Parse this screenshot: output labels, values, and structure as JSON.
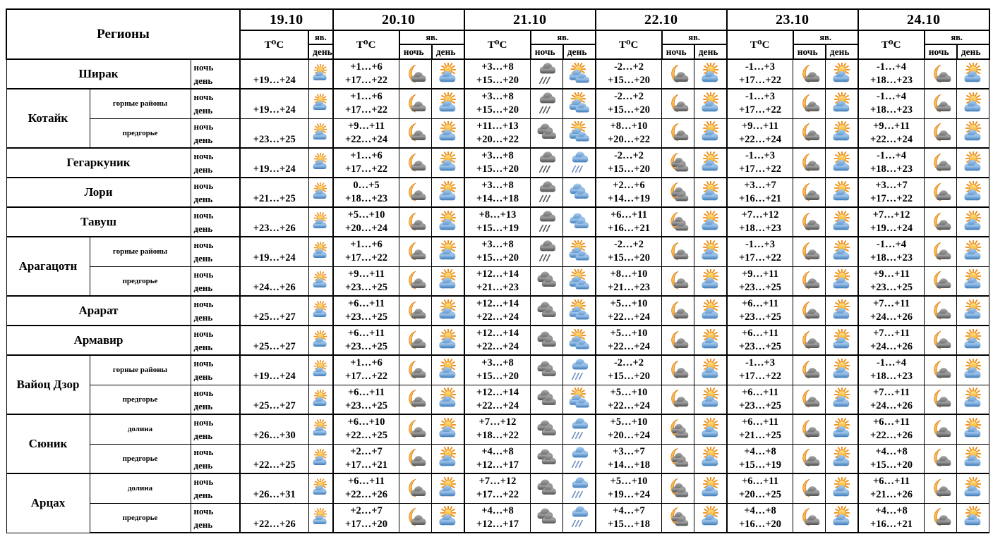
{
  "labels": {
    "regions": "Регионы",
    "temperature": "T⁰C",
    "phenomena": "яв.",
    "night": "ночь",
    "day": "день"
  },
  "dates": [
    "19.10",
    "20.10",
    "21.10",
    "22.10",
    "23.10",
    "24.10"
  ],
  "icons": {
    "sun-cloud": "sun above blue cloud (partly sunny)",
    "sun-clouds": "sun behind two blue clouds",
    "moon-cloud": "crescent moon with dark cloud",
    "moon-clouds": "crescent moon with two dark clouds",
    "cloud-rain-night": "dark cloud with rain",
    "cloud-rain-day": "blue cloud with rain",
    "clouds-dark": "two dark clouds",
    "clouds-blue": "two blue clouds"
  },
  "colors": {
    "sun": "#f5a623",
    "moon": "#ef8f1c",
    "cloud_day": "#3d7ab8",
    "cloud_night": "#5a5a5a",
    "border": "#000000"
  },
  "rows": [
    {
      "region": "Ширак",
      "subregion": null,
      "new_region": true,
      "cells": [
        {
          "day_t": "+19…+24",
          "day_icon": "sun-cloud"
        },
        {
          "night_t": "+1…+6",
          "day_t": "+17…+22",
          "night_icon": "moon-cloud",
          "day_icon": "sun-cloud"
        },
        {
          "night_t": "+3…+8",
          "day_t": "+15…+20",
          "night_icon": "cloud-rain-night",
          "day_icon": "sun-clouds"
        },
        {
          "night_t": "-2…+2",
          "day_t": "+15…+20",
          "night_icon": "moon-cloud",
          "day_icon": "sun-cloud"
        },
        {
          "night_t": "-1…+3",
          "day_t": "+17…+22",
          "night_icon": "moon-cloud",
          "day_icon": "sun-cloud"
        },
        {
          "night_t": "-1…+4",
          "day_t": "+18…+23",
          "night_icon": "moon-cloud",
          "day_icon": "sun-cloud"
        }
      ]
    },
    {
      "region": "Котайк",
      "rowspan": 2,
      "subregion": "горные районы",
      "new_region": true,
      "cells": [
        {
          "day_t": "+19…+24",
          "day_icon": "sun-cloud"
        },
        {
          "night_t": "+1…+6",
          "day_t": "+17…+22",
          "night_icon": "moon-cloud",
          "day_icon": "sun-cloud"
        },
        {
          "night_t": "+3…+8",
          "day_t": "+15…+20",
          "night_icon": "cloud-rain-night",
          "day_icon": "sun-clouds"
        },
        {
          "night_t": "-2…+2",
          "day_t": "+15…+20",
          "night_icon": "moon-cloud",
          "day_icon": "sun-cloud"
        },
        {
          "night_t": "-1…+3",
          "day_t": "+17…+22",
          "night_icon": "moon-cloud",
          "day_icon": "sun-cloud"
        },
        {
          "night_t": "-1…+4",
          "day_t": "+18…+23",
          "night_icon": "moon-cloud",
          "day_icon": "sun-cloud"
        }
      ]
    },
    {
      "region": null,
      "subregion": "предгорье",
      "cells": [
        {
          "day_t": "+23…+25",
          "day_icon": "sun-cloud"
        },
        {
          "night_t": "+9…+11",
          "day_t": "+22…+24",
          "night_icon": "moon-cloud",
          "day_icon": "sun-cloud"
        },
        {
          "night_t": "+11…+13",
          "day_t": "+20…+22",
          "night_icon": "clouds-dark",
          "day_icon": "sun-clouds"
        },
        {
          "night_t": "+8…+10",
          "day_t": "+20…+22",
          "night_icon": "moon-cloud",
          "day_icon": "sun-cloud"
        },
        {
          "night_t": "+9…+11",
          "day_t": "+22…+24",
          "night_icon": "moon-cloud",
          "day_icon": "sun-cloud"
        },
        {
          "night_t": "+9…+11",
          "day_t": "+22…+24",
          "night_icon": "moon-cloud",
          "day_icon": "sun-cloud"
        }
      ]
    },
    {
      "region": "Гегаркуник",
      "subregion": null,
      "new_region": true,
      "cells": [
        {
          "day_t": "+19…+24",
          "day_icon": "sun-cloud"
        },
        {
          "night_t": "+1…+6",
          "day_t": "+17…+22",
          "night_icon": "moon-cloud",
          "day_icon": "sun-cloud"
        },
        {
          "night_t": "+3…+8",
          "day_t": "+15…+20",
          "night_icon": "cloud-rain-night",
          "day_icon": "cloud-rain-day"
        },
        {
          "night_t": "-2…+2",
          "day_t": "+15…+20",
          "night_icon": "moon-clouds",
          "day_icon": "sun-cloud"
        },
        {
          "night_t": "-1…+3",
          "day_t": "+17…+22",
          "night_icon": "moon-cloud",
          "day_icon": "sun-cloud"
        },
        {
          "night_t": "-1…+4",
          "day_t": "+18…+23",
          "night_icon": "moon-cloud",
          "day_icon": "sun-cloud"
        }
      ]
    },
    {
      "region": "Лори",
      "subregion": null,
      "new_region": true,
      "cells": [
        {
          "day_t": "+21…+25",
          "day_icon": "sun-cloud"
        },
        {
          "night_t": "0…+5",
          "day_t": "+18…+23",
          "night_icon": "moon-cloud",
          "day_icon": "sun-cloud"
        },
        {
          "night_t": "+3…+8",
          "day_t": "+14…+18",
          "night_icon": "cloud-rain-night",
          "day_icon": "clouds-blue"
        },
        {
          "night_t": "+2…+6",
          "day_t": "+14…+19",
          "night_icon": "moon-clouds",
          "day_icon": "sun-cloud"
        },
        {
          "night_t": "+3…+7",
          "day_t": "+16…+21",
          "night_icon": "moon-cloud",
          "day_icon": "sun-cloud"
        },
        {
          "night_t": "+3…+7",
          "day_t": "+17…+22",
          "night_icon": "moon-cloud",
          "day_icon": "sun-cloud"
        }
      ]
    },
    {
      "region": "Тавуш",
      "subregion": null,
      "new_region": true,
      "cells": [
        {
          "day_t": "+23…+26",
          "day_icon": "sun-cloud"
        },
        {
          "night_t": "+5…+10",
          "day_t": "+20…+24",
          "night_icon": "moon-cloud",
          "day_icon": "sun-cloud"
        },
        {
          "night_t": "+8…+13",
          "day_t": "+15…+19",
          "night_icon": "cloud-rain-night",
          "day_icon": "clouds-blue"
        },
        {
          "night_t": "+6…+11",
          "day_t": "+16…+21",
          "night_icon": "moon-clouds",
          "day_icon": "sun-cloud"
        },
        {
          "night_t": "+7…+12",
          "day_t": "+18…+23",
          "night_icon": "moon-cloud",
          "day_icon": "sun-cloud"
        },
        {
          "night_t": "+7…+12",
          "day_t": "+19…+24",
          "night_icon": "moon-cloud",
          "day_icon": "sun-cloud"
        }
      ]
    },
    {
      "region": "Арагацотн",
      "rowspan": 2,
      "subregion": "горные районы",
      "new_region": true,
      "cells": [
        {
          "day_t": "+19…+24",
          "day_icon": "sun-cloud"
        },
        {
          "night_t": "+1…+6",
          "day_t": "+17…+22",
          "night_icon": "moon-cloud",
          "day_icon": "sun-cloud"
        },
        {
          "night_t": "+3…+8",
          "day_t": "+15…+20",
          "night_icon": "cloud-rain-night",
          "day_icon": "sun-clouds"
        },
        {
          "night_t": "-2…+2",
          "day_t": "+15…+20",
          "night_icon": "moon-cloud",
          "day_icon": "sun-cloud"
        },
        {
          "night_t": "-1…+3",
          "day_t": "+17…+22",
          "night_icon": "moon-cloud",
          "day_icon": "sun-cloud"
        },
        {
          "night_t": "-1…+4",
          "day_t": "+18…+23",
          "night_icon": "moon-cloud",
          "day_icon": "sun-cloud"
        }
      ]
    },
    {
      "region": null,
      "subregion": "предгорье",
      "cells": [
        {
          "day_t": "+24…+26",
          "day_icon": "sun-cloud"
        },
        {
          "night_t": "+9…+11",
          "day_t": "+23…+25",
          "night_icon": "moon-cloud",
          "day_icon": "sun-cloud"
        },
        {
          "night_t": "+12…+14",
          "day_t": "+21…+23",
          "night_icon": "clouds-dark",
          "day_icon": "sun-clouds"
        },
        {
          "night_t": "+8…+10",
          "day_t": "+21…+23",
          "night_icon": "moon-cloud",
          "day_icon": "sun-cloud"
        },
        {
          "night_t": "+9…+11",
          "day_t": "+23…+25",
          "night_icon": "moon-cloud",
          "day_icon": "sun-cloud"
        },
        {
          "night_t": "+9…+11",
          "day_t": "+23…+25",
          "night_icon": "moon-cloud",
          "day_icon": "sun-cloud"
        }
      ]
    },
    {
      "region": "Арарат",
      "subregion": null,
      "new_region": true,
      "cells": [
        {
          "day_t": "+25…+27",
          "day_icon": "sun-cloud"
        },
        {
          "night_t": "+6…+11",
          "day_t": "+23…+25",
          "night_icon": "moon-cloud",
          "day_icon": "sun-cloud"
        },
        {
          "night_t": "+12…+14",
          "day_t": "+22…+24",
          "night_icon": "clouds-dark",
          "day_icon": "sun-clouds"
        },
        {
          "night_t": "+5…+10",
          "day_t": "+22…+24",
          "night_icon": "moon-cloud",
          "day_icon": "sun-cloud"
        },
        {
          "night_t": "+6…+11",
          "day_t": "+23…+25",
          "night_icon": "moon-cloud",
          "day_icon": "sun-cloud"
        },
        {
          "night_t": "+7…+11",
          "day_t": "+24…+26",
          "night_icon": "moon-cloud",
          "day_icon": "sun-cloud"
        }
      ]
    },
    {
      "region": "Армавир",
      "subregion": null,
      "new_region": true,
      "cells": [
        {
          "day_t": "+25…+27",
          "day_icon": "sun-cloud"
        },
        {
          "night_t": "+6…+11",
          "day_t": "+23…+25",
          "night_icon": "moon-cloud",
          "day_icon": "sun-cloud"
        },
        {
          "night_t": "+12…+14",
          "day_t": "+22…+24",
          "night_icon": "clouds-dark",
          "day_icon": "sun-clouds"
        },
        {
          "night_t": "+5…+10",
          "day_t": "+22…+24",
          "night_icon": "moon-cloud",
          "day_icon": "sun-cloud"
        },
        {
          "night_t": "+6…+11",
          "day_t": "+23…+25",
          "night_icon": "moon-cloud",
          "day_icon": "sun-cloud"
        },
        {
          "night_t": "+7…+11",
          "day_t": "+24…+26",
          "night_icon": "moon-cloud",
          "day_icon": "sun-cloud"
        }
      ]
    },
    {
      "region": "Вайоц Дзор",
      "rowspan": 2,
      "subregion": "горные районы",
      "new_region": true,
      "cells": [
        {
          "day_t": "+19…+24",
          "day_icon": "sun-cloud"
        },
        {
          "night_t": "+1…+6",
          "day_t": "+17…+22",
          "night_icon": "moon-cloud",
          "day_icon": "sun-cloud"
        },
        {
          "night_t": "+3…+8",
          "day_t": "+15…+20",
          "night_icon": "clouds-dark",
          "day_icon": "cloud-rain-day"
        },
        {
          "night_t": "-2…+2",
          "day_t": "+15…+20",
          "night_icon": "moon-cloud",
          "day_icon": "sun-cloud"
        },
        {
          "night_t": "-1…+3",
          "day_t": "+17…+22",
          "night_icon": "moon-cloud",
          "day_icon": "sun-cloud"
        },
        {
          "night_t": "-1…+4",
          "day_t": "+18…+23",
          "night_icon": "moon-cloud",
          "day_icon": "sun-cloud"
        }
      ]
    },
    {
      "region": null,
      "subregion": "предгорье",
      "cells": [
        {
          "day_t": "+25…+27",
          "day_icon": "sun-cloud"
        },
        {
          "night_t": "+6…+11",
          "day_t": "+23…+25",
          "night_icon": "moon-cloud",
          "day_icon": "sun-cloud"
        },
        {
          "night_t": "+12…+14",
          "day_t": "+22…+24",
          "night_icon": "clouds-dark",
          "day_icon": "sun-clouds"
        },
        {
          "night_t": "+5…+10",
          "day_t": "+22…+24",
          "night_icon": "moon-cloud",
          "day_icon": "sun-cloud"
        },
        {
          "night_t": "+6…+11",
          "day_t": "+23…+25",
          "night_icon": "moon-cloud",
          "day_icon": "sun-cloud"
        },
        {
          "night_t": "+7…+11",
          "day_t": "+24…+26",
          "night_icon": "moon-cloud",
          "day_icon": "sun-cloud"
        }
      ]
    },
    {
      "region": "Сюник",
      "rowspan": 2,
      "subregion": "долина",
      "new_region": true,
      "cells": [
        {
          "day_t": "+26…+30",
          "day_icon": "sun-cloud"
        },
        {
          "night_t": "+6…+10",
          "day_t": "+22…+25",
          "night_icon": "moon-cloud",
          "day_icon": "sun-cloud"
        },
        {
          "night_t": "+7…+12",
          "day_t": "+18…+22",
          "night_icon": "clouds-dark",
          "day_icon": "cloud-rain-day"
        },
        {
          "night_t": "+5…+10",
          "day_t": "+20…+24",
          "night_icon": "moon-clouds",
          "day_icon": "sun-cloud"
        },
        {
          "night_t": "+6…+11",
          "day_t": "+21…+25",
          "night_icon": "moon-cloud",
          "day_icon": "sun-cloud"
        },
        {
          "night_t": "+6…+11",
          "day_t": "+22…+26",
          "night_icon": "moon-cloud",
          "day_icon": "sun-cloud"
        }
      ]
    },
    {
      "region": null,
      "subregion": "предгорье",
      "cells": [
        {
          "day_t": "+22…+25",
          "day_icon": "sun-cloud"
        },
        {
          "night_t": "+2…+7",
          "day_t": "+17…+21",
          "night_icon": "moon-cloud",
          "day_icon": "sun-cloud"
        },
        {
          "night_t": "+4…+8",
          "day_t": "+12…+17",
          "night_icon": "clouds-dark",
          "day_icon": "cloud-rain-day"
        },
        {
          "night_t": "+3…+7",
          "day_t": "+14…+18",
          "night_icon": "moon-clouds",
          "day_icon": "sun-cloud"
        },
        {
          "night_t": "+4…+8",
          "day_t": "+15…+19",
          "night_icon": "moon-cloud",
          "day_icon": "sun-cloud"
        },
        {
          "night_t": "+4…+8",
          "day_t": "+15…+20",
          "night_icon": "moon-cloud",
          "day_icon": "sun-cloud"
        }
      ]
    },
    {
      "region": "Арцах",
      "rowspan": 2,
      "subregion": "долина",
      "new_region": true,
      "cells": [
        {
          "day_t": "+26…+31",
          "day_icon": "sun-cloud"
        },
        {
          "night_t": "+6…+11",
          "day_t": "+22…+26",
          "night_icon": "moon-cloud",
          "day_icon": "sun-cloud"
        },
        {
          "night_t": "+7…+12",
          "day_t": "+17…+22",
          "night_icon": "clouds-dark",
          "day_icon": "cloud-rain-day"
        },
        {
          "night_t": "+5…+10",
          "day_t": "+19…+24",
          "night_icon": "moon-clouds",
          "day_icon": "sun-cloud"
        },
        {
          "night_t": "+6…+11",
          "day_t": "+20…+25",
          "night_icon": "moon-cloud",
          "day_icon": "sun-cloud"
        },
        {
          "night_t": "+6…+11",
          "day_t": "+21…+26",
          "night_icon": "moon-cloud",
          "day_icon": "sun-cloud"
        }
      ]
    },
    {
      "region": null,
      "subregion": "предгорье",
      "cells": [
        {
          "day_t": "+22…+26",
          "day_icon": "sun-cloud"
        },
        {
          "night_t": "+2…+7",
          "day_t": "+17…+20",
          "night_icon": "moon-cloud",
          "day_icon": "sun-cloud"
        },
        {
          "night_t": "+4…+8",
          "day_t": "+12…+17",
          "night_icon": "clouds-dark",
          "day_icon": "cloud-rain-day"
        },
        {
          "night_t": "+4…+7",
          "day_t": "+15…+18",
          "night_icon": "moon-clouds",
          "day_icon": "sun-cloud"
        },
        {
          "night_t": "+4…+8",
          "day_t": "+16…+20",
          "night_icon": "moon-cloud",
          "day_icon": "sun-cloud"
        },
        {
          "night_t": "+4…+8",
          "day_t": "+16…+21",
          "night_icon": "moon-cloud",
          "day_icon": "sun-cloud"
        }
      ]
    }
  ]
}
